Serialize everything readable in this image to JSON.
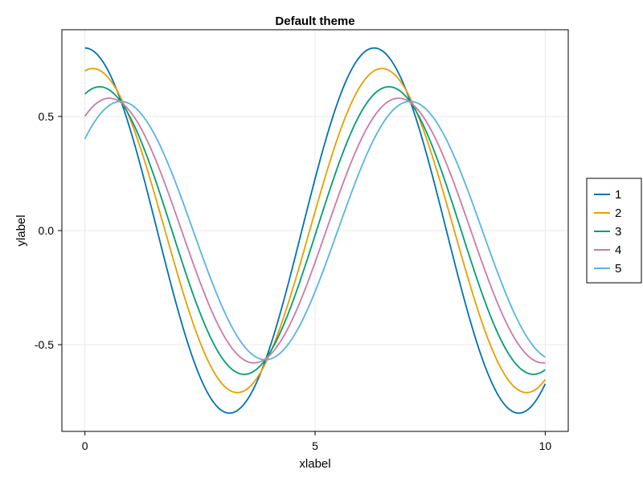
{
  "chart_data": {
    "type": "line",
    "title": "Default theme",
    "xlabel": "xlabel",
    "ylabel": "ylabel",
    "xlim": [
      -0.5,
      10.5
    ],
    "ylim": [
      -0.88,
      0.88
    ],
    "xticks": [
      0,
      5,
      10
    ],
    "xtick_labels": [
      "0",
      "5",
      "10"
    ],
    "yticks": [
      -0.5,
      0.0,
      0.5
    ],
    "ytick_labels": [
      "-0.5",
      "0.0",
      "0.5"
    ],
    "grid": true,
    "legend_position": "right",
    "x_start": 0,
    "x_end": 10,
    "series": [
      {
        "name": "1",
        "color": "#0072B2",
        "x": [
          0,
          0.5,
          1,
          1.5,
          2,
          2.5,
          3,
          3.5,
          4,
          4.5,
          5,
          5.5,
          6,
          6.5,
          7,
          7.5,
          8,
          8.5,
          9,
          9.5,
          10
        ],
        "y": [
          0.8,
          0.702,
          0.432,
          0.057,
          -0.333,
          -0.641,
          -0.792,
          -0.749,
          -0.523,
          -0.168,
          0.227,
          0.567,
          0.768,
          0.781,
          0.603,
          0.277,
          -0.116,
          -0.482,
          -0.729,
          -0.798,
          -0.671
        ]
      },
      {
        "name": "2",
        "color": "#E69F00",
        "x": [
          0,
          0.5,
          1,
          1.5,
          2,
          2.5,
          3,
          3.5,
          4,
          4.5,
          5,
          5.5,
          6,
          6.5,
          7,
          7.5,
          8,
          8.5,
          9,
          9.5,
          10
        ],
        "y": [
          0.7,
          0.68,
          0.475,
          0.147,
          -0.227,
          -0.543,
          -0.705,
          -0.692,
          -0.533,
          -0.222,
          0.15,
          0.487,
          0.682,
          0.703,
          0.56,
          0.298,
          -0.054,
          -0.398,
          -0.646,
          -0.7,
          -0.641
        ]
      },
      {
        "name": "3",
        "color": "#009E73",
        "x": [
          0,
          0.5,
          1,
          1.5,
          2,
          2.5,
          3,
          3.5,
          4,
          4.5,
          5,
          5.5,
          6,
          6.5,
          7,
          7.5,
          8,
          8.5,
          9,
          9.5,
          10
        ],
        "y": [
          0.6,
          0.625,
          0.5,
          0.221,
          -0.122,
          -0.438,
          -0.619,
          -0.628,
          -0.54,
          -0.269,
          0.079,
          0.405,
          0.599,
          0.631,
          0.55,
          0.309,
          0.002,
          -0.329,
          -0.566,
          -0.631,
          -0.609
        ]
      },
      {
        "name": "4",
        "color": "#CC79A7",
        "x": [
          0,
          0.5,
          1,
          1.5,
          2,
          2.5,
          3,
          3.5,
          4,
          4.5,
          5,
          5.5,
          6,
          6.5,
          7,
          7.5,
          8,
          8.5,
          9,
          9.5,
          10
        ],
        "y": [
          0.5,
          0.582,
          0.523,
          0.281,
          -0.028,
          -0.347,
          -0.534,
          -0.579,
          -0.543,
          -0.311,
          0.013,
          0.313,
          0.509,
          0.581,
          0.547,
          0.353,
          0.062,
          -0.253,
          -0.482,
          -0.574,
          -0.583
        ]
      },
      {
        "name": "5",
        "color": "#56B4E9",
        "x": [
          0,
          0.5,
          1,
          1.5,
          2,
          2.5,
          3,
          3.5,
          4,
          4.5,
          5,
          5.5,
          6,
          6.5,
          7,
          7.5,
          8,
          8.5,
          9,
          9.5,
          10
        ],
        "y": [
          0.4,
          0.545,
          0.54,
          0.342,
          0.054,
          -0.255,
          -0.461,
          -0.558,
          -0.551,
          -0.355,
          -0.043,
          0.228,
          0.442,
          0.556,
          0.56,
          0.401,
          0.119,
          -0.174,
          -0.401,
          -0.526,
          -0.557
        ]
      }
    ]
  }
}
